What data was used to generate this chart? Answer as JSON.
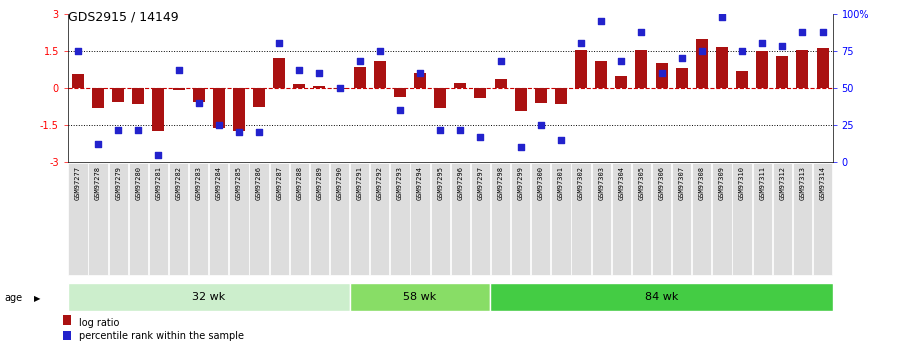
{
  "title": "GDS2915 / 14149",
  "samples": [
    "GSM97277",
    "GSM97278",
    "GSM97279",
    "GSM97280",
    "GSM97281",
    "GSM97282",
    "GSM97283",
    "GSM97284",
    "GSM97285",
    "GSM97286",
    "GSM97287",
    "GSM97288",
    "GSM97289",
    "GSM97290",
    "GSM97291",
    "GSM97292",
    "GSM97293",
    "GSM97294",
    "GSM97295",
    "GSM97296",
    "GSM97297",
    "GSM97298",
    "GSM97299",
    "GSM97300",
    "GSM97301",
    "GSM97302",
    "GSM97303",
    "GSM97304",
    "GSM97305",
    "GSM97306",
    "GSM97307",
    "GSM97308",
    "GSM97309",
    "GSM97310",
    "GSM97311",
    "GSM97312",
    "GSM97313",
    "GSM97314"
  ],
  "log_ratio": [
    0.55,
    -0.8,
    -0.55,
    -0.65,
    -1.75,
    -0.1,
    -0.55,
    -1.6,
    -1.75,
    -0.75,
    1.2,
    0.15,
    0.1,
    -0.05,
    0.85,
    1.1,
    -0.35,
    0.6,
    -0.8,
    0.2,
    -0.4,
    0.35,
    -0.95,
    -0.6,
    -0.65,
    1.55,
    1.1,
    0.5,
    1.55,
    1.0,
    0.8,
    2.0,
    1.65,
    0.7,
    1.5,
    1.3,
    1.55,
    1.6
  ],
  "percentile_rank": [
    75,
    12,
    22,
    22,
    5,
    62,
    40,
    25,
    20,
    20,
    80,
    62,
    60,
    50,
    68,
    75,
    35,
    60,
    22,
    22,
    17,
    68,
    10,
    25,
    15,
    80,
    95,
    68,
    88,
    60,
    70,
    75,
    98,
    75,
    80,
    78,
    88,
    88
  ],
  "group_32wk": [
    0,
    14
  ],
  "group_58wk": [
    14,
    21
  ],
  "group_84wk": [
    21,
    38
  ],
  "bar_color": "#aa1111",
  "dot_color": "#2222cc",
  "dotted_line_color": "#000000",
  "zero_line_color": "#cc0000",
  "ylim": [
    -3,
    3
  ],
  "y2lim": [
    0,
    100
  ],
  "group_colors": [
    "#cceecc",
    "#88dd66",
    "#44cc44"
  ],
  "legend_log_ratio": "log ratio",
  "legend_percentile": "percentile rank within the sample"
}
